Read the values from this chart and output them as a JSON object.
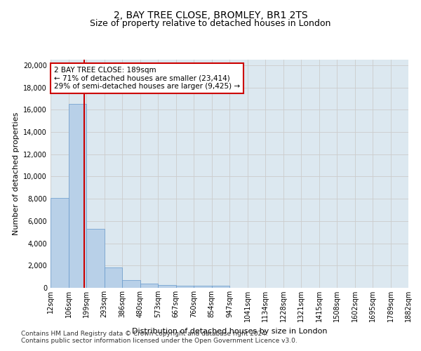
{
  "title1": "2, BAY TREE CLOSE, BROMLEY, BR1 2TS",
  "title2": "Size of property relative to detached houses in London",
  "xlabel": "Distribution of detached houses by size in London",
  "ylabel": "Number of detached properties",
  "bar_color": "#b8d0e8",
  "bar_edge_color": "#6699cc",
  "grid_color": "#cccccc",
  "bg_color": "#dce8f0",
  "vline_x": 189,
  "vline_color": "#cc0000",
  "annotation_line1": "2 BAY TREE CLOSE: 189sqm",
  "annotation_line2": "← 71% of detached houses are smaller (23,414)",
  "annotation_line3": "29% of semi-detached houses are larger (9,425) →",
  "annotation_box_color": "#cc0000",
  "bin_edges": [
    12,
    106,
    199,
    293,
    386,
    480,
    573,
    667,
    760,
    854,
    947,
    1041,
    1134,
    1228,
    1321,
    1415,
    1508,
    1602,
    1695,
    1789,
    1882
  ],
  "bar_heights": [
    8100,
    16500,
    5300,
    1850,
    700,
    380,
    280,
    200,
    190,
    170,
    0,
    0,
    0,
    0,
    0,
    0,
    0,
    0,
    0,
    0
  ],
  "ylim": [
    0,
    20500
  ],
  "yticks": [
    0,
    2000,
    4000,
    6000,
    8000,
    10000,
    12000,
    14000,
    16000,
    18000,
    20000
  ],
  "footnote1": "Contains HM Land Registry data © Crown copyright and database right 2024.",
  "footnote2": "Contains public sector information licensed under the Open Government Licence v3.0.",
  "title1_fontsize": 10,
  "title2_fontsize": 9,
  "xlabel_fontsize": 8,
  "ylabel_fontsize": 8,
  "tick_fontsize": 7,
  "footnote_fontsize": 6.5
}
